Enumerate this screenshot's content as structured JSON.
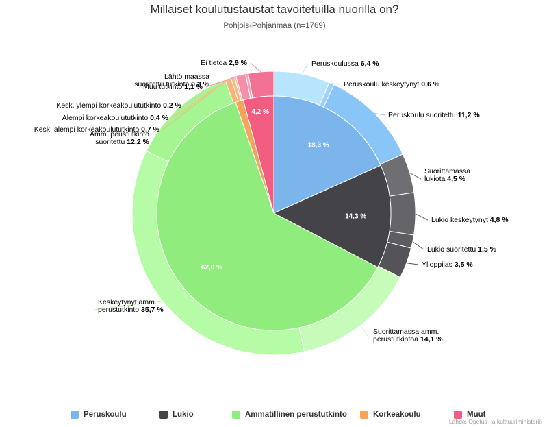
{
  "title": "Millaiset koulutustaustat tavoitetuilla nuorilla on?",
  "subtitle": "Pohjois-Pohjanmaa (n=1769)",
  "credits": "Lähde: Opetus- ja kulttuuriministeriö",
  "chart_data": {
    "type": "pie",
    "variant": "donut-with-inner-pie",
    "start_angle_deg": 0,
    "inner_series": [
      {
        "name": "Peruskoulu",
        "label": "18,3 %",
        "value": 18.3,
        "color": "#7cb5ec",
        "label_color": "#ffffff"
      },
      {
        "name": "Lukio",
        "label": "14,3 %",
        "value": 14.3,
        "color": "#434348",
        "label_color": "#ffffff"
      },
      {
        "name": "Ammatillinen perustutkinto",
        "label": "62,0 %",
        "value": 62.0,
        "color": "#90ed7d",
        "label_color": "#ffffff"
      },
      {
        "name": "Korkeakoulu",
        "label": "",
        "value": 1.1,
        "color": "#f7a35c",
        "label_color": "#ffffff"
      },
      {
        "name": "Muut",
        "label": "4,2 %",
        "value": 4.2,
        "color": "#f15c80",
        "label_color": "#ffffff"
      }
    ],
    "outer_series": [
      {
        "name": "Peruskoulussa",
        "value_text": "6,4 %",
        "value": 6.4,
        "color": "#b8e4fd"
      },
      {
        "name": "Peruskoulu keskeytynyt",
        "value_text": "0,6 %",
        "value": 0.6,
        "color": "#9fd2fb"
      },
      {
        "name": "Peruskoulu suoritettu",
        "value_text": "11,2 %",
        "value": 11.2,
        "color": "#8ac5f7"
      },
      {
        "name": "Suorittamassa\nlukiota",
        "value_text": "4,5 %",
        "value": 4.5,
        "color": "#6e6e73"
      },
      {
        "name": "Lukio keskeytynyt",
        "value_text": "4,8 %",
        "value": 4.8,
        "color": "#656569"
      },
      {
        "name": "Lukio suoritettu",
        "value_text": "1,5 %",
        "value": 1.5,
        "color": "#5c5c61"
      },
      {
        "name": "Ylioppilas",
        "value_text": "3,5 %",
        "value": 3.5,
        "color": "#535358"
      },
      {
        "name": "Suorittamassa amm.\nperustutkintoa",
        "value_text": "14,1 %",
        "value": 14.1,
        "color": "#c7fbba"
      },
      {
        "name": "Keskeytynyt amm.\nperustutkinto",
        "value_text": "35,7 %",
        "value": 35.7,
        "color": "#b6fba5"
      },
      {
        "name": "Amm. peustutkinto\nsuoritettu",
        "value_text": "12,2 %",
        "value": 12.2,
        "color": "#a5f593"
      },
      {
        "name": "Kesk. alempi korkeakoulututkinto",
        "value_text": "0,7 %",
        "value": 0.7,
        "color": "#f9b377"
      },
      {
        "name": "Alempi korkeakoulututkinto",
        "value_text": "0,4 %",
        "value": 0.4,
        "color": "#fbb884"
      },
      {
        "name": "Kesk. ylempi korkeakoulututkinto",
        "value_text": "0,2 %",
        "value": 0.2,
        "color": "#fcc196"
      },
      {
        "name": "Muu tutkinto",
        "value_text": "1,1 %",
        "value": 1.1,
        "color": "#f58ea8"
      },
      {
        "name": "Lähtö maassa\nsuoritettu tutkinto",
        "value_text": "0,3 %",
        "value": 0.3,
        "color": "#f7a0b6"
      },
      {
        "name": "Ei tietoa",
        "value_text": "2,9 %",
        "value": 2.9,
        "color": "#f37293"
      }
    ],
    "legend": {
      "position": "bottom",
      "items": [
        {
          "name": "Peruskoulu",
          "color": "#7cb5ec"
        },
        {
          "name": "Lukio",
          "color": "#434348"
        },
        {
          "name": "Ammatillinen perustutkinto",
          "color": "#90ed7d"
        },
        {
          "name": "Korkeakoulu",
          "color": "#f7a35c"
        },
        {
          "name": "Muut",
          "color": "#f15c80"
        }
      ]
    }
  }
}
